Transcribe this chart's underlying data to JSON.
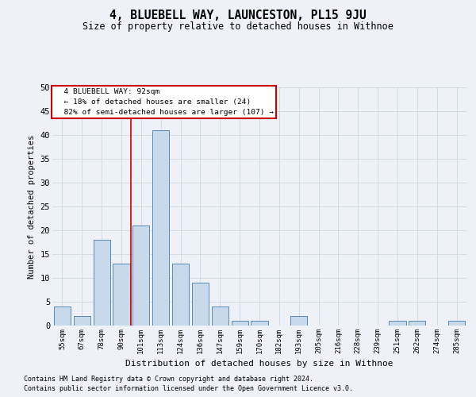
{
  "title": "4, BLUEBELL WAY, LAUNCESTON, PL15 9JU",
  "subtitle": "Size of property relative to detached houses in Withnoe",
  "xlabel": "Distribution of detached houses by size in Withnoe",
  "ylabel": "Number of detached properties",
  "categories": [
    "55sqm",
    "67sqm",
    "78sqm",
    "90sqm",
    "101sqm",
    "113sqm",
    "124sqm",
    "136sqm",
    "147sqm",
    "159sqm",
    "170sqm",
    "182sqm",
    "193sqm",
    "205sqm",
    "216sqm",
    "228sqm",
    "239sqm",
    "251sqm",
    "262sqm",
    "274sqm",
    "285sqm"
  ],
  "values": [
    4,
    2,
    18,
    13,
    21,
    41,
    13,
    9,
    4,
    1,
    1,
    0,
    2,
    0,
    0,
    0,
    0,
    1,
    1,
    0,
    1
  ],
  "bar_color": "#c9d9ec",
  "bar_edge_color": "#5b8ab5",
  "grid_color": "#d0d8e8",
  "background_color": "#eef2f8",
  "property_label": "4 BLUEBELL WAY: 92sqm",
  "pct_smaller": 18,
  "n_smaller": 24,
  "pct_larger": 82,
  "n_larger": 107,
  "annotation_box_color": "#ffffff",
  "annotation_box_edge": "#cc0000",
  "vline_color": "#cc0000",
  "vline_x_index": 3.5,
  "ylim": [
    0,
    50
  ],
  "yticks": [
    0,
    5,
    10,
    15,
    20,
    25,
    30,
    35,
    40,
    45,
    50
  ],
  "footer1": "Contains HM Land Registry data © Crown copyright and database right 2024.",
  "footer2": "Contains public sector information licensed under the Open Government Licence v3.0."
}
